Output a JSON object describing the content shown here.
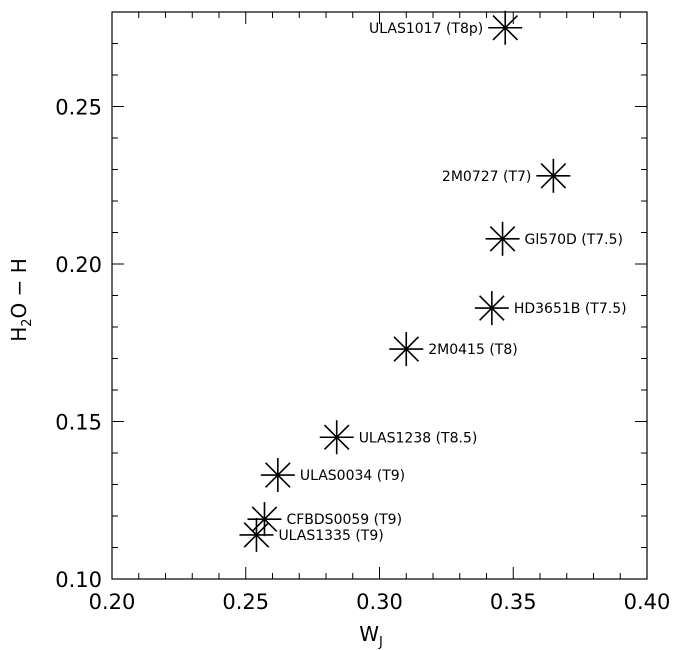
{
  "chart_data": {
    "type": "scatter",
    "title": "",
    "xlabel": "W",
    "xlabel_sub": "J",
    "ylabel": "H",
    "ylabel_sub": "2",
    "ylabel_rest": "O − H",
    "xlim": [
      0.2,
      0.4
    ],
    "ylim": [
      0.1,
      0.28
    ],
    "xticks": [
      "0.20",
      "0.25",
      "0.30",
      "0.35",
      "0.40"
    ],
    "xtick_values": [
      0.2,
      0.25,
      0.3,
      0.35,
      0.4
    ],
    "yticks": [
      "0.10",
      "0.15",
      "0.20",
      "0.25"
    ],
    "ytick_values": [
      0.1,
      0.15,
      0.2,
      0.25
    ],
    "grid": false,
    "marker": "asterisk",
    "points": [
      {
        "x": 0.347,
        "y": 0.275,
        "label": "ULAS1017 (T8p)",
        "label_side": "left"
      },
      {
        "x": 0.365,
        "y": 0.228,
        "label": "2M0727 (T7)",
        "label_side": "left"
      },
      {
        "x": 0.346,
        "y": 0.208,
        "label": "Gl570D (T7.5)",
        "label_side": "right"
      },
      {
        "x": 0.342,
        "y": 0.186,
        "label": "HD3651B (T7.5)",
        "label_side": "right"
      },
      {
        "x": 0.31,
        "y": 0.173,
        "label": "2M0415 (T8)",
        "label_side": "right"
      },
      {
        "x": 0.284,
        "y": 0.145,
        "label": "ULAS1238 (T8.5)",
        "label_side": "right"
      },
      {
        "x": 0.262,
        "y": 0.133,
        "label": "ULAS0034 (T9)",
        "label_side": "right"
      },
      {
        "x": 0.257,
        "y": 0.119,
        "label": "CFBDS0059 (T9)",
        "label_side": "right"
      },
      {
        "x": 0.254,
        "y": 0.114,
        "label": "ULAS1335 (T9)",
        "label_side": "right"
      }
    ]
  }
}
